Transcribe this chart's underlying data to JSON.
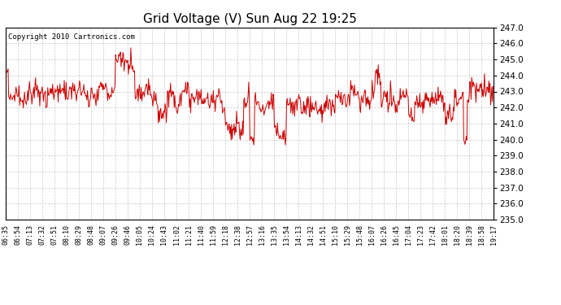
{
  "title": "Grid Voltage (V) Sun Aug 22 19:25",
  "copyright": "Copyright 2010 Cartronics.com",
  "line_color": "#cc0000",
  "background_color": "#ffffff",
  "grid_color": "#bbbbbb",
  "ylim": [
    235.0,
    247.0
  ],
  "yticks": [
    235.0,
    236.0,
    237.0,
    238.0,
    239.0,
    240.0,
    241.0,
    242.0,
    243.0,
    244.0,
    245.0,
    246.0,
    247.0
  ],
  "xtick_labels": [
    "06:35",
    "06:54",
    "07:13",
    "07:32",
    "07:51",
    "08:10",
    "08:29",
    "08:48",
    "09:07",
    "09:26",
    "09:46",
    "10:05",
    "10:24",
    "10:43",
    "11:02",
    "11:21",
    "11:40",
    "11:59",
    "12:18",
    "12:38",
    "12:57",
    "13:16",
    "13:35",
    "13:54",
    "14:13",
    "14:32",
    "14:51",
    "15:10",
    "15:29",
    "15:48",
    "16:07",
    "16:26",
    "16:45",
    "17:04",
    "17:23",
    "17:42",
    "18:01",
    "18:20",
    "18:39",
    "18:58",
    "19:17"
  ],
  "line_width": 0.7,
  "title_fontsize": 11,
  "ytick_fontsize": 7.5,
  "xtick_fontsize": 6,
  "copyright_fontsize": 6.5
}
